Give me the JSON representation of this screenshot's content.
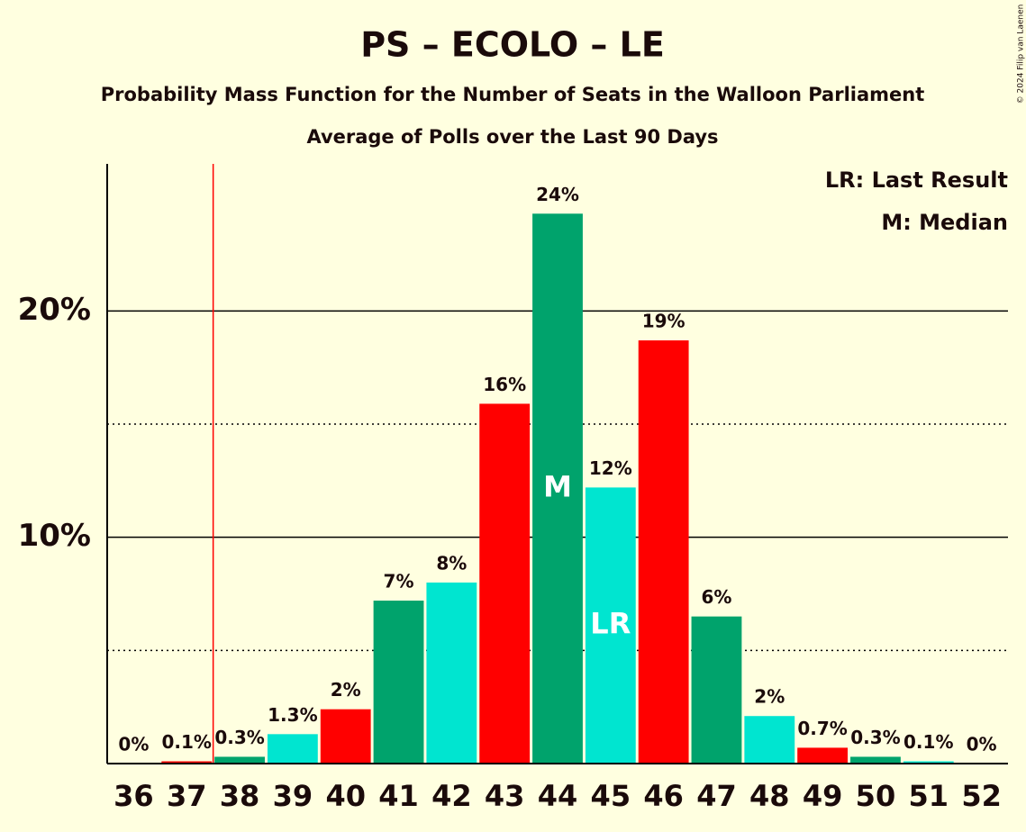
{
  "chart_data": {
    "type": "bar",
    "title": "PS – ECOLO – LE",
    "subtitle": "Probability Mass Function for the Number of Seats in the Walloon Parliament",
    "subtitle2": "Average of Polls over the Last 90 Days",
    "copyright": "© 2024 Filip van Laenen",
    "categories": [
      36,
      37,
      38,
      39,
      40,
      41,
      42,
      43,
      44,
      45,
      46,
      47,
      48,
      49,
      50,
      51,
      52
    ],
    "values": [
      0,
      0.1,
      0.3,
      1.3,
      2.4,
      7.2,
      8.0,
      15.9,
      24.3,
      12.2,
      18.7,
      6.5,
      2.1,
      0.7,
      0.3,
      0.1,
      0
    ],
    "value_labels": [
      "0%",
      "0.1%",
      "0.3%",
      "1.3%",
      "2%",
      "7%",
      "8%",
      "16%",
      "24%",
      "12%",
      "19%",
      "6%",
      "2%",
      "0.7%",
      "0.3%",
      "0.1%",
      "0%"
    ],
    "colors": [
      "#00e5d0",
      "#ff0000",
      "#00a36c",
      "#00e5d0",
      "#ff0000",
      "#00a36c",
      "#00e5d0",
      "#ff0000",
      "#00a36c",
      "#00e5d0",
      "#ff0000",
      "#00a36c",
      "#00e5d0",
      "#ff0000",
      "#00a36c",
      "#00e5d0",
      "#ff0000"
    ],
    "ylim": [
      0,
      26.5
    ],
    "yticks": [
      {
        "value": 10,
        "label": "10%"
      },
      {
        "value": 20,
        "label": "20%"
      }
    ],
    "minor_yticks": [
      5,
      15
    ],
    "grid": true,
    "threshold": 37.5,
    "threshold_color": "#ff0000",
    "median": {
      "category": 44,
      "label": "M"
    },
    "last_result": {
      "category": 45,
      "label": "LR"
    },
    "legend_notes": [
      "LR: Last Result",
      "M: Median"
    ]
  }
}
